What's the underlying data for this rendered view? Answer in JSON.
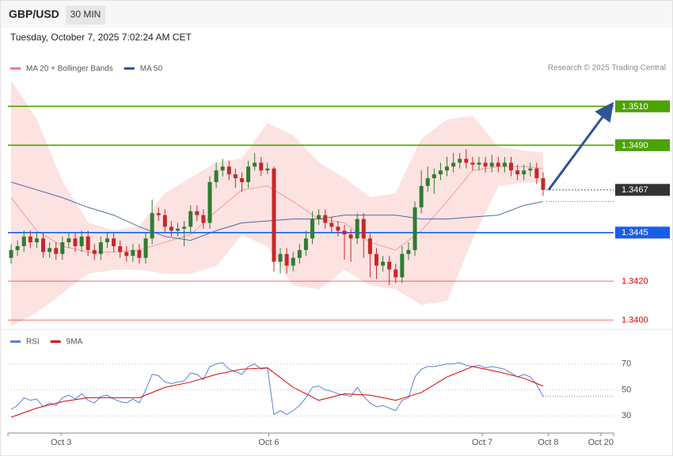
{
  "header": {
    "symbol": "GBP/USD",
    "timeframe": "30 MIN",
    "timestamp": "Tuesday, October 7, 2025 7:02:24 AM CET"
  },
  "chart_data": [
    {
      "type": "candlestick",
      "credit": "Research © 2025 Trading Central",
      "xlim": [
        -0.5,
        94
      ],
      "ylim": [
        1.3396,
        1.3524
      ],
      "up_color": "#2e7d32",
      "down_color": "#c62828",
      "open": [
        1.3432,
        1.3436,
        1.3438,
        1.3443,
        1.344,
        1.3442,
        1.3435,
        1.3437,
        1.3434,
        1.344,
        1.3442,
        1.3438,
        1.3443,
        1.3436,
        1.3434,
        1.344,
        1.3442,
        1.3438,
        1.3435,
        1.3433,
        1.3436,
        1.3432,
        1.3442,
        1.3455,
        1.3454,
        1.3448,
        1.3446,
        1.3447,
        1.3448,
        1.3456,
        1.3454,
        1.345,
        1.3471,
        1.3477,
        1.3479,
        1.3475,
        1.3473,
        1.3471,
        1.3479,
        1.3481,
        1.3477,
        1.3478,
        1.343,
        1.3434,
        1.3428,
        1.3432,
        1.3436,
        1.3442,
        1.3452,
        1.3454,
        1.345,
        1.3448,
        1.3446,
        1.3444,
        1.3442,
        1.3452,
        1.3442,
        1.3434,
        1.3428,
        1.343,
        1.3426,
        1.3422,
        1.3434,
        1.3436,
        1.3458,
        1.3469,
        1.3473,
        1.3475,
        1.3477,
        1.3479,
        1.3481,
        1.3483,
        1.3481,
        1.348,
        1.3481,
        1.3479,
        1.3481,
        1.3479,
        1.3481,
        1.3477,
        1.3475,
        1.3477,
        1.3478,
        1.3473
      ],
      "high": [
        1.3439,
        1.3441,
        1.3446,
        1.3446,
        1.3445,
        1.3445,
        1.344,
        1.344,
        1.3443,
        1.3445,
        1.3445,
        1.3446,
        1.3446,
        1.3439,
        1.3443,
        1.3445,
        1.3445,
        1.3441,
        1.3438,
        1.3439,
        1.3439,
        1.3445,
        1.3462,
        1.3458,
        1.3457,
        1.3451,
        1.345,
        1.3451,
        1.3459,
        1.3459,
        1.3457,
        1.3474,
        1.3481,
        1.3483,
        1.3482,
        1.3478,
        1.3476,
        1.3482,
        1.3486,
        1.3484,
        1.3481,
        1.3479,
        1.3437,
        1.3437,
        1.3435,
        1.3439,
        1.3446,
        1.3456,
        1.3457,
        1.3457,
        1.3453,
        1.3451,
        1.3449,
        1.3447,
        1.3455,
        1.3455,
        1.3445,
        1.3437,
        1.3433,
        1.3433,
        1.3429,
        1.3438,
        1.344,
        1.3461,
        1.3477,
        1.3479,
        1.3478,
        1.3481,
        1.3484,
        1.3486,
        1.3486,
        1.3488,
        1.3484,
        1.3484,
        1.3484,
        1.3485,
        1.3484,
        1.3484,
        1.3484,
        1.348,
        1.348,
        1.3481,
        1.3481,
        1.3476
      ],
      "low": [
        1.3429,
        1.3433,
        1.3435,
        1.3437,
        1.3437,
        1.3432,
        1.3432,
        1.3431,
        1.3431,
        1.3437,
        1.3435,
        1.3435,
        1.3433,
        1.3431,
        1.3431,
        1.3437,
        1.3435,
        1.3432,
        1.343,
        1.343,
        1.3429,
        1.3429,
        1.3439,
        1.3451,
        1.3445,
        1.3443,
        1.3443,
        1.3438,
        1.3445,
        1.3451,
        1.3447,
        1.3447,
        1.3468,
        1.3474,
        1.3472,
        1.3468,
        1.3466,
        1.3468,
        1.3477,
        1.3474,
        1.3475,
        1.3425,
        1.3424,
        1.3424,
        1.3425,
        1.3429,
        1.3433,
        1.3439,
        1.3449,
        1.3447,
        1.3445,
        1.3443,
        1.3431,
        1.343,
        1.3439,
        1.3432,
        1.3422,
        1.3421,
        1.3425,
        1.3418,
        1.3419,
        1.3419,
        1.3431,
        1.3433,
        1.3455,
        1.3466,
        1.3465,
        1.3472,
        1.3474,
        1.3476,
        1.3478,
        1.3478,
        1.3477,
        1.3477,
        1.3476,
        1.3476,
        1.3476,
        1.3476,
        1.3474,
        1.3472,
        1.3472,
        1.3474,
        1.347,
        1.3464
      ],
      "close": [
        1.3436,
        1.3438,
        1.3443,
        1.344,
        1.3442,
        1.3435,
        1.3437,
        1.3434,
        1.344,
        1.3442,
        1.3438,
        1.3443,
        1.3436,
        1.3434,
        1.344,
        1.3442,
        1.3438,
        1.3435,
        1.3433,
        1.3436,
        1.3432,
        1.3442,
        1.3455,
        1.3454,
        1.3448,
        1.3446,
        1.3447,
        1.3448,
        1.3456,
        1.3454,
        1.345,
        1.3471,
        1.3477,
        1.3479,
        1.3475,
        1.3473,
        1.3471,
        1.3479,
        1.3481,
        1.3477,
        1.3478,
        1.343,
        1.3434,
        1.3428,
        1.3432,
        1.3436,
        1.3442,
        1.3452,
        1.3454,
        1.345,
        1.3448,
        1.3446,
        1.3444,
        1.3442,
        1.3452,
        1.3442,
        1.3434,
        1.3428,
        1.343,
        1.3426,
        1.3422,
        1.3434,
        1.3436,
        1.3458,
        1.3469,
        1.3473,
        1.3475,
        1.3477,
        1.3479,
        1.3481,
        1.3483,
        1.3481,
        1.348,
        1.3481,
        1.3479,
        1.3481,
        1.3479,
        1.3481,
        1.3477,
        1.3475,
        1.3477,
        1.3478,
        1.3473,
        1.3467
      ],
      "overlays": [
        {
          "name": "MA 20 + Bollinger Bands",
          "color": "#f08080",
          "fill": "#fde2e2",
          "x": [
            0,
            4,
            8,
            12,
            16,
            20,
            24,
            28,
            32,
            36,
            40,
            44,
            48,
            52,
            56,
            60,
            64,
            68,
            72,
            76,
            80,
            83
          ],
          "upper": [
            1.3523,
            1.3503,
            1.3471,
            1.345,
            1.3446,
            1.3448,
            1.3465,
            1.3473,
            1.3481,
            1.3483,
            1.3501,
            1.3495,
            1.3481,
            1.3473,
            1.3463,
            1.3465,
            1.3493,
            1.3503,
            1.3505,
            1.3489,
            1.3487,
            1.3486
          ],
          "middle": [
            1.3463,
            1.3446,
            1.3438,
            1.3435,
            1.3435,
            1.3436,
            1.344,
            1.3444,
            1.3456,
            1.3467,
            1.3469,
            1.3461,
            1.3452,
            1.345,
            1.344,
            1.3436,
            1.3446,
            1.3461,
            1.3477,
            1.3479,
            1.3479,
            1.3478
          ],
          "lower": [
            1.3397,
            1.3404,
            1.3414,
            1.3424,
            1.3426,
            1.3426,
            1.3424,
            1.3424,
            1.3428,
            1.3444,
            1.3438,
            1.3418,
            1.3416,
            1.3426,
            1.3418,
            1.3416,
            1.3408,
            1.341,
            1.3442,
            1.3469,
            1.3471,
            1.3471
          ]
        },
        {
          "name": "MA 50",
          "color": "#2f5597",
          "x": [
            0,
            4,
            8,
            12,
            16,
            20,
            24,
            28,
            32,
            36,
            40,
            44,
            48,
            52,
            56,
            60,
            64,
            68,
            72,
            76,
            80,
            83
          ],
          "values": [
            1.3471,
            1.3467,
            1.3463,
            1.3458,
            1.3454,
            1.3448,
            1.3443,
            1.3441,
            1.3446,
            1.345,
            1.3451,
            1.3452,
            1.3452,
            1.3454,
            1.3454,
            1.3454,
            1.3452,
            1.3452,
            1.3453,
            1.3454,
            1.3459,
            1.3461
          ]
        }
      ],
      "levels": [
        {
          "value": 1.351,
          "label": "1.3510",
          "color": "#4ca300",
          "boxed": true
        },
        {
          "value": 1.349,
          "label": "1.3490",
          "color": "#4ca300",
          "boxed": true
        },
        {
          "value": 1.3467,
          "label": "1.3467",
          "color": "#333333",
          "boxed": true,
          "dashed": true
        },
        {
          "value": 1.3445,
          "label": "1.3445",
          "color": "#1a5ee6",
          "boxed": true
        },
        {
          "value": 1.342,
          "label": "1.3420",
          "color": "#e00000",
          "boxed": false
        },
        {
          "value": 1.34,
          "label": "1.3400",
          "color": "#e00000",
          "boxed": false
        }
      ]
    },
    {
      "type": "line",
      "xlim": [
        -0.5,
        94
      ],
      "ylim": [
        18,
        79
      ],
      "yticks": [
        30,
        50,
        70
      ],
      "grid": true,
      "xticks": [
        {
          "value": 7.8,
          "label": "Oct 3"
        },
        {
          "value": 40.2,
          "label": "Oct 6"
        },
        {
          "value": 73.5,
          "label": "Oct 7"
        },
        {
          "value": 83.8,
          "label": "Oct 8"
        },
        {
          "value": 92,
          "label": "Oct 20"
        }
      ],
      "series": [
        {
          "name": "RSI",
          "color": "#5b7fd6",
          "values": [
            35,
            38,
            44,
            42,
            43,
            37,
            40,
            38,
            44,
            46,
            43,
            47,
            42,
            40,
            45,
            46,
            43,
            41,
            40,
            43,
            40,
            50,
            62,
            61,
            56,
            55,
            56,
            57,
            63,
            62,
            58,
            68,
            70,
            71,
            66,
            64,
            62,
            68,
            70,
            66,
            67,
            31,
            34,
            31,
            34,
            38,
            44,
            52,
            53,
            50,
            49,
            47,
            46,
            45,
            52,
            45,
            40,
            37,
            38,
            36,
            34,
            42,
            44,
            60,
            66,
            68,
            68,
            69,
            70,
            70,
            71,
            69,
            68,
            69,
            67,
            68,
            67,
            66,
            63,
            60,
            62,
            60,
            54,
            45
          ]
        },
        {
          "name": "9MA",
          "color": "#e00000",
          "x": [
            0,
            4,
            8,
            12,
            16,
            20,
            24,
            28,
            32,
            36,
            40,
            44,
            48,
            52,
            56,
            60,
            64,
            68,
            72,
            76,
            80,
            83
          ],
          "values": [
            29,
            36,
            41,
            44,
            44,
            44,
            52,
            56,
            62,
            66,
            67,
            52,
            42,
            47,
            46,
            42,
            48,
            60,
            68,
            64,
            59,
            53
          ]
        }
      ]
    }
  ]
}
